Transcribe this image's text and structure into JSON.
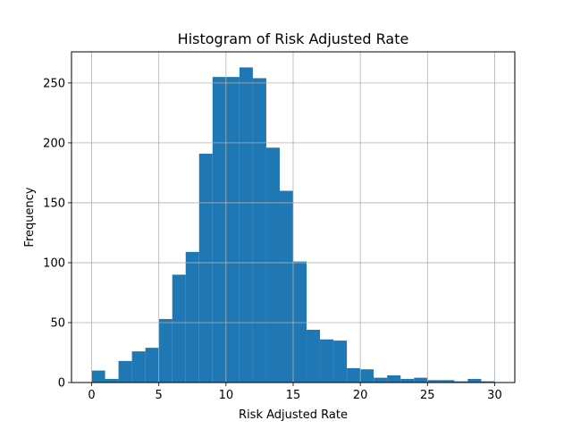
{
  "chart_data": {
    "type": "bar",
    "title": "Histogram of Risk Adjusted Rate",
    "xlabel": "Risk Adjusted Rate",
    "ylabel": "Frequency",
    "xlim": [
      -1.5,
      31.5
    ],
    "ylim": [
      0,
      276
    ],
    "xticks": [
      0,
      5,
      10,
      15,
      20,
      25,
      30
    ],
    "yticks": [
      0,
      50,
      100,
      150,
      200,
      250
    ],
    "grid": true,
    "bar_color": "#1f77b4",
    "bin_start": 0,
    "bin_width": 1,
    "values": [
      10,
      3,
      18,
      26,
      29,
      53,
      90,
      109,
      191,
      255,
      255,
      263,
      254,
      196,
      160,
      101,
      44,
      36,
      35,
      12,
      11,
      4,
      6,
      3,
      4,
      2,
      2,
      1,
      3,
      1
    ]
  }
}
